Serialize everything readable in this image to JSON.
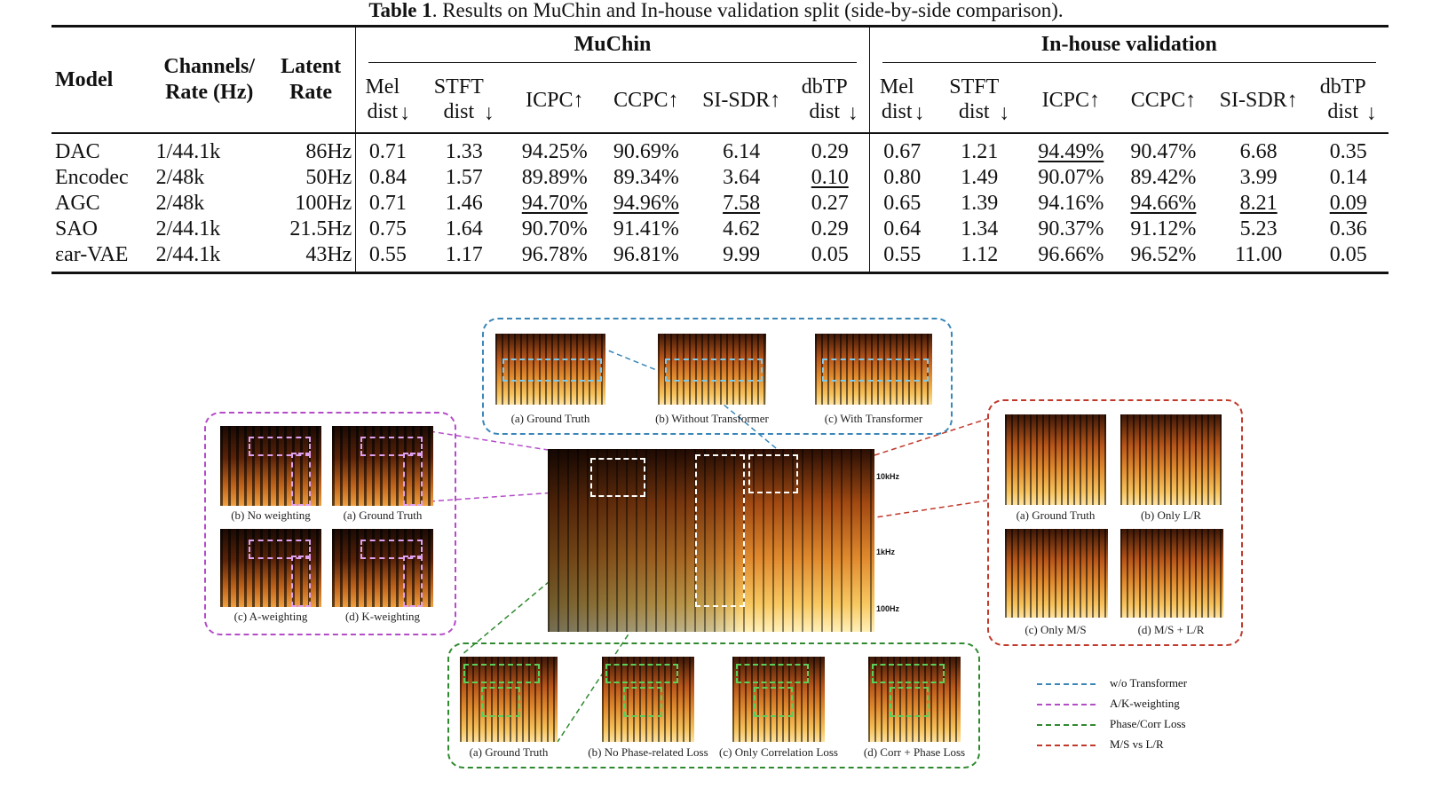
{
  "caption": {
    "label": "Table 1",
    "text": ". Results on MuChin and In-house validation split (side-by-side comparison)."
  },
  "table": {
    "headers": {
      "model": "Model",
      "channels": "Channels/",
      "channels2": "Rate (Hz)",
      "latent": "Latent",
      "latent2": "Rate",
      "group1": "MuChin",
      "group2": "In-house validation",
      "metrics": [
        {
          "top": "Mel",
          "bot": "dist",
          "arrow": "↓"
        },
        {
          "top": "STFT",
          "bot": "dist",
          "arrow": "↓"
        },
        {
          "top": "ICPC↑",
          "bot": "",
          "arrow": ""
        },
        {
          "top": "CCPC↑",
          "bot": "",
          "arrow": ""
        },
        {
          "top": "SI-SDR↑",
          "bot": "",
          "arrow": ""
        },
        {
          "top": "dbTP",
          "bot": "dist",
          "arrow": "↓"
        }
      ]
    },
    "rows": [
      {
        "model": "DAC",
        "ch": "1/44.1k",
        "lr": "86Hz",
        "a": [
          "0.71",
          "1.33",
          "94.25%",
          "90.69%",
          "6.14",
          "0.29"
        ],
        "b": [
          "0.67",
          "1.21",
          "94.49%",
          "90.47%",
          "6.68",
          "0.35"
        ],
        "au": [],
        "bu": [
          2
        ],
        "bold": false
      },
      {
        "model": "Encodec",
        "ch": "2/48k",
        "lr": "50Hz",
        "a": [
          "0.84",
          "1.57",
          "89.89%",
          "89.34%",
          "3.64",
          "0.10"
        ],
        "b": [
          "0.80",
          "1.49",
          "90.07%",
          "89.42%",
          "3.99",
          "0.14"
        ],
        "au": [
          5
        ],
        "bu": [],
        "bold": false
      },
      {
        "model": "AGC",
        "ch": "2/48k",
        "lr": "100Hz",
        "a": [
          "0.71",
          "1.46",
          "94.70%",
          "94.96%",
          "7.58",
          "0.27"
        ],
        "b": [
          "0.65",
          "1.39",
          "94.16%",
          "94.66%",
          "8.21",
          "0.09"
        ],
        "au": [
          2,
          3,
          4
        ],
        "bu": [
          3,
          4,
          5
        ],
        "bold": false
      },
      {
        "model": "SAO",
        "ch": "2/44.1k",
        "lr": "21.5Hz",
        "a": [
          "0.75",
          "1.64",
          "90.70%",
          "91.41%",
          "4.62",
          "0.29"
        ],
        "b": [
          "0.64",
          "1.34",
          "90.37%",
          "91.12%",
          "5.23",
          "0.36"
        ],
        "au": [],
        "bu": [],
        "bold": false
      },
      {
        "model": "εar-VAE",
        "ch": "2/44.1k",
        "lr": "43Hz",
        "a": [
          "0.55",
          "1.17",
          "96.78%",
          "96.81%",
          "9.99",
          "0.05"
        ],
        "b": [
          "0.55",
          "1.12",
          "96.66%",
          "96.52%",
          "11.00",
          "0.05"
        ],
        "au": [],
        "bu": [],
        "bold": true
      }
    ]
  },
  "figure": {
    "colors": {
      "blue": "#3a86b8",
      "purple": "#b44cc8",
      "green": "#2f8a2f",
      "red": "#c0392b"
    },
    "main_freq_labels": [
      "10kHz",
      "1kHz",
      "100Hz"
    ],
    "top_panel": [
      "(a) Ground Truth",
      "(b) Without Transformer",
      "(c) With Transformer"
    ],
    "left_panel": [
      "(b) No weighting",
      "(a) Ground Truth",
      "(c) A-weighting",
      "(d) K-weighting"
    ],
    "right_panel": [
      "(a) Ground Truth",
      "(b) Only L/R",
      "(c) Only M/S",
      "(d) M/S + L/R"
    ],
    "bottom_panel": [
      "(a) Ground Truth",
      "(b) No Phase-related Loss",
      "(c) Only Correlation Loss",
      "(d) Corr + Phase Loss"
    ],
    "legend": [
      {
        "label": "w/o Transformer",
        "color": "#3a86b8"
      },
      {
        "label": "A/K-weighting",
        "color": "#b44cc8"
      },
      {
        "label": "Phase/Corr Loss",
        "color": "#2f8a2f"
      },
      {
        "label": "M/S vs L/R",
        "color": "#c0392b"
      }
    ]
  }
}
